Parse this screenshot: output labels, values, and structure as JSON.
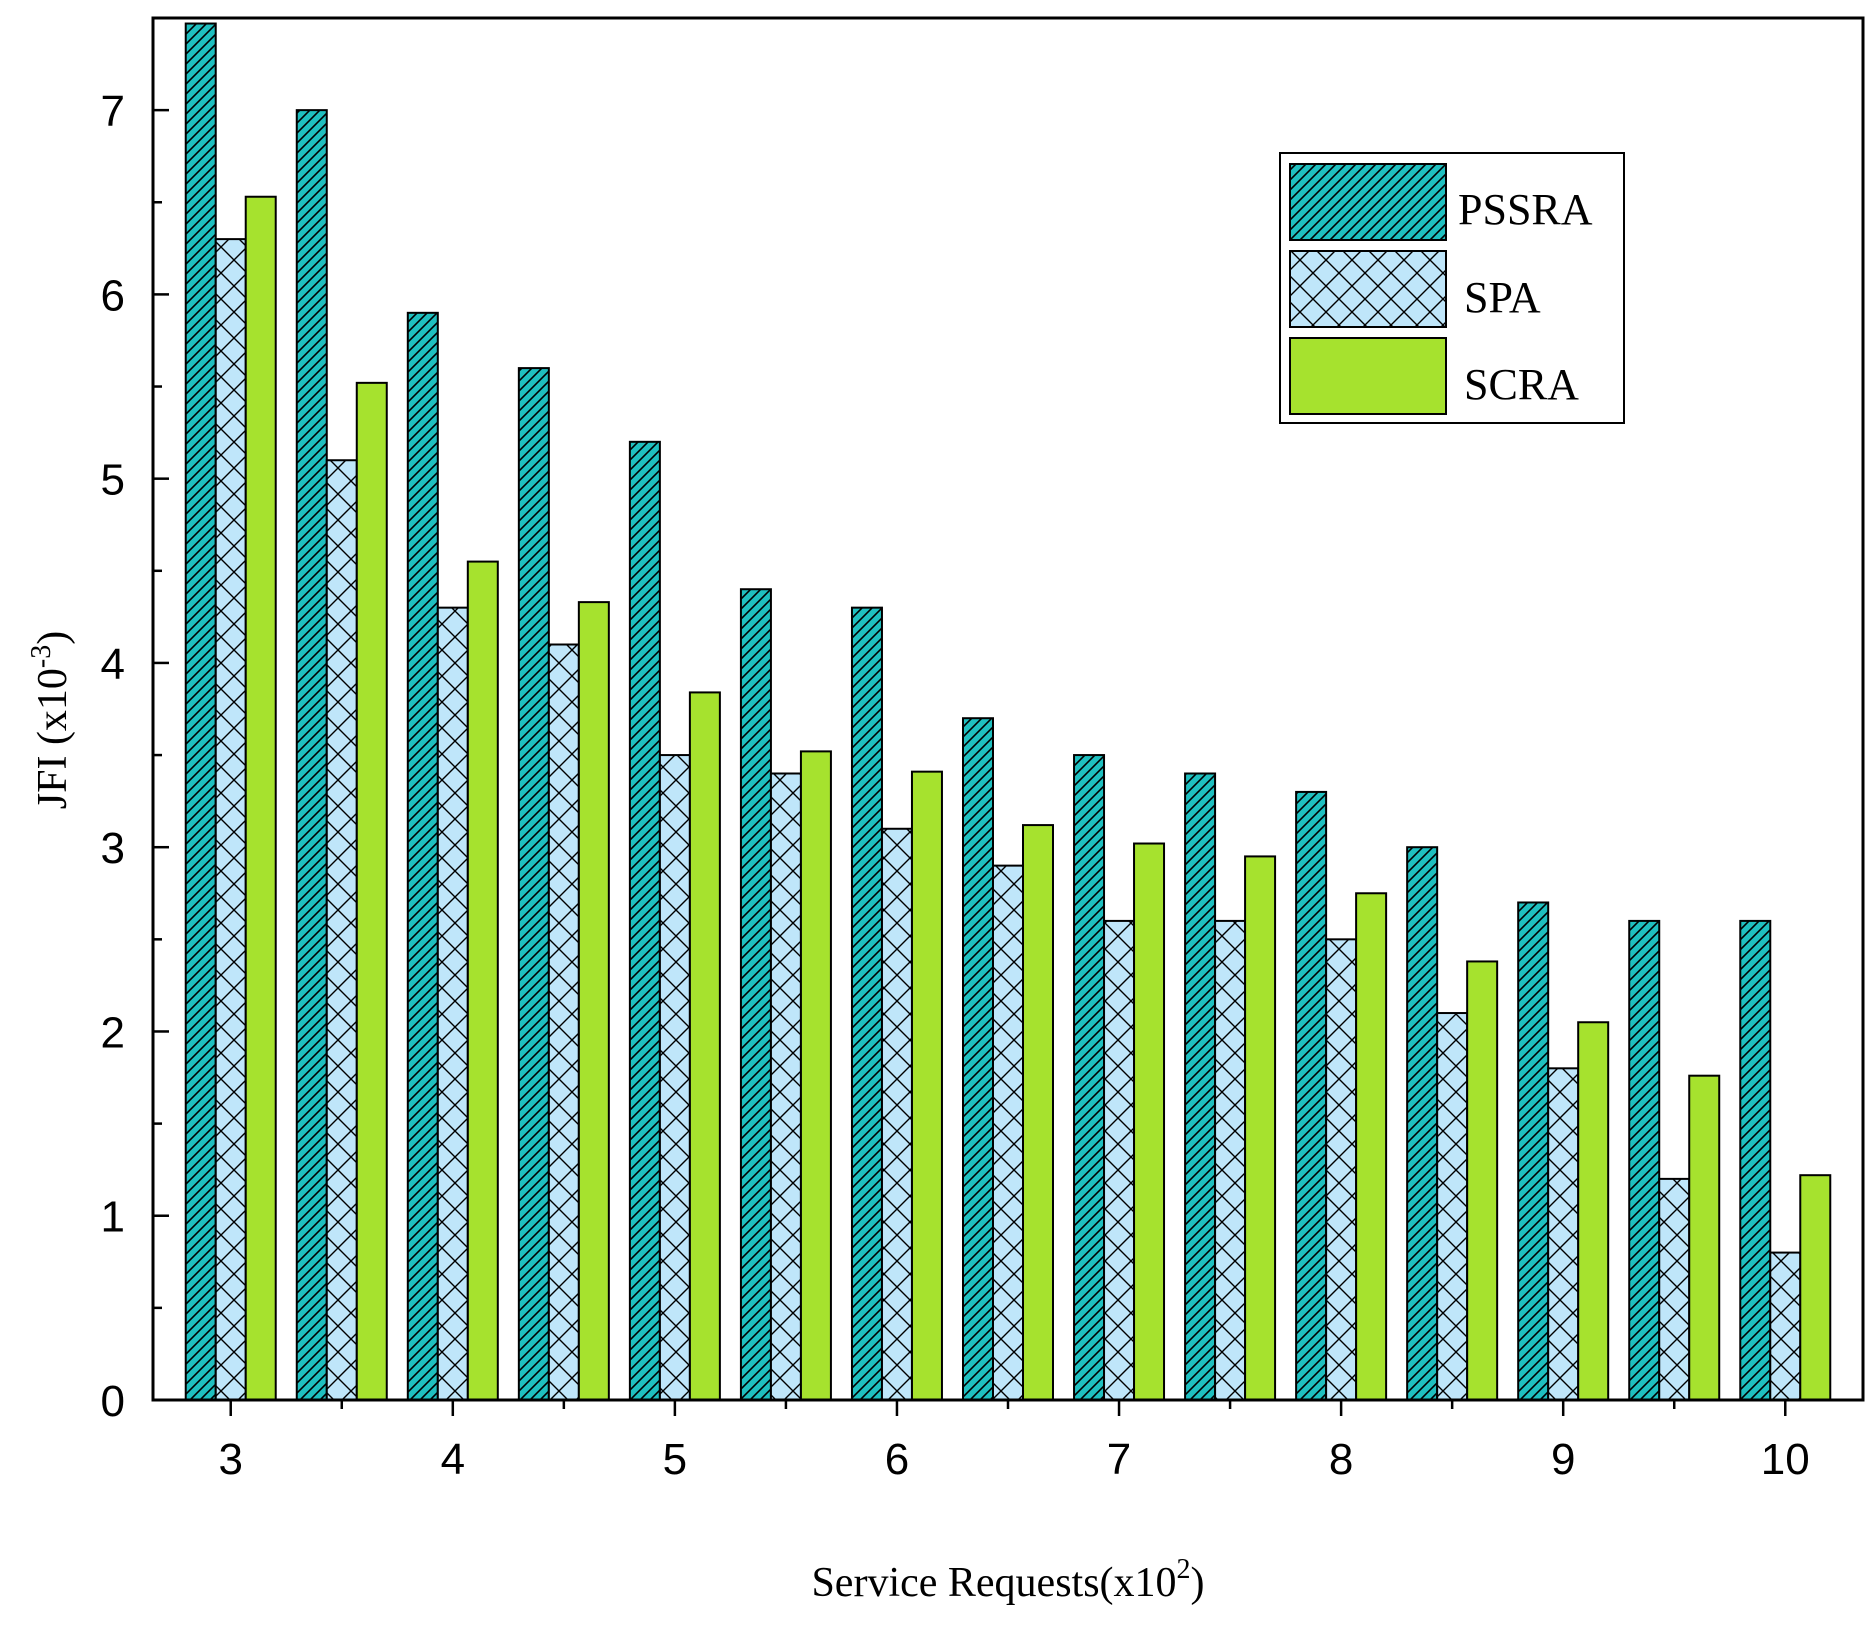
{
  "chart_data": {
    "type": "bar",
    "title": "",
    "xlabel_main": "Service Requests(x10",
    "xlabel_sup": "2",
    "xlabel_close": ")",
    "ylabel_main": "JFI (x10",
    "ylabel_sup": "-3",
    "ylabel_close": ")",
    "xlim": [
      2.65,
      10.35
    ],
    "ylim": [
      0,
      7.5
    ],
    "xticks": [
      3,
      4,
      5,
      6,
      7,
      8,
      9,
      10
    ],
    "xtick_labels": [
      "3",
      "4",
      "5",
      "6",
      "7",
      "8",
      "9",
      "10"
    ],
    "yticks": [
      0,
      1,
      2,
      3,
      4,
      5,
      6,
      7
    ],
    "ytick_labels": [
      "0",
      "1",
      "2",
      "3",
      "4",
      "5",
      "6",
      "7"
    ],
    "categories": [
      3,
      3.5,
      4,
      4.5,
      5,
      5.5,
      6,
      6.5,
      7,
      7.5,
      8,
      8.5,
      9,
      9.5,
      10
    ],
    "series": [
      {
        "name": "PSSRA",
        "color": "#1fbfbf",
        "pattern": "diagonal",
        "values": [
          7.47,
          7.0,
          5.9,
          5.6,
          5.2,
          4.4,
          4.3,
          3.7,
          3.5,
          3.4,
          3.3,
          3.0,
          2.7,
          2.6,
          2.6
        ]
      },
      {
        "name": "SPA",
        "color": "#bfe6fa",
        "pattern": "crosshatch",
        "values": [
          6.3,
          5.1,
          4.3,
          4.1,
          3.5,
          3.4,
          3.1,
          2.9,
          2.6,
          2.6,
          2.5,
          2.1,
          1.8,
          1.2,
          0.8
        ]
      },
      {
        "name": "SCRA",
        "color": "#a6e22e",
        "pattern": "solid",
        "values": [
          6.53,
          5.52,
          4.55,
          4.33,
          3.84,
          3.52,
          3.41,
          3.12,
          3.02,
          2.95,
          2.75,
          2.38,
          2.05,
          1.76,
          1.22
        ]
      }
    ],
    "legend_position": "top-right",
    "grid": false
  }
}
